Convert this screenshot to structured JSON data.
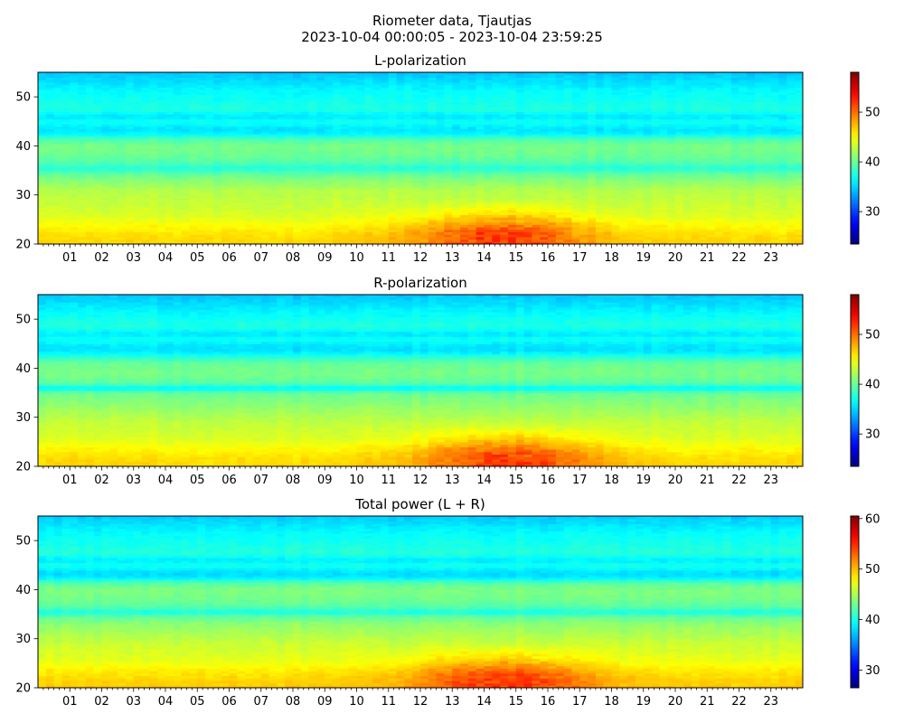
{
  "figure": {
    "title_line1": "Riometer data, Tjautjas",
    "title_line2": "2023-10-04 00:00:05 - 2023-10-04 23:59:25"
  },
  "colormap": "jet",
  "chart_data": [
    {
      "type": "heatmap",
      "title": "L-polarization",
      "x_tick_labels": [
        "01",
        "02",
        "03",
        "04",
        "05",
        "06",
        "07",
        "08",
        "09",
        "10",
        "11",
        "12",
        "13",
        "14",
        "15",
        "16",
        "17",
        "18",
        "19",
        "20",
        "21",
        "22",
        "23"
      ],
      "x_ticks_hours": [
        1,
        2,
        3,
        4,
        5,
        6,
        7,
        8,
        9,
        10,
        11,
        12,
        13,
        14,
        15,
        16,
        17,
        18,
        19,
        20,
        21,
        22,
        23
      ],
      "xlim_hours": [
        0,
        24
      ],
      "ylim": [
        20,
        55
      ],
      "y_ticks": [
        20,
        30,
        40,
        50
      ],
      "colorbar_range": [
        23.5,
        58
      ],
      "colorbar_ticks": [
        30,
        40,
        50
      ],
      "base_profile": {
        "y": [
          20,
          22,
          24,
          25.5,
          27,
          29,
          31,
          33,
          34.5,
          35.5,
          36.5,
          38,
          40,
          41.5,
          42.5,
          43.5,
          45,
          46,
          47.5,
          49,
          51,
          53,
          55
        ],
        "value": [
          46.5,
          46,
          45,
          44,
          43.5,
          43,
          42.5,
          41,
          39.5,
          37.5,
          39,
          40,
          40.5,
          39,
          36,
          35.5,
          37,
          35.5,
          37.5,
          37,
          36.5,
          35.5,
          34.5
        ]
      },
      "enhancement": {
        "center_hour": 14.5,
        "width_hours": 3.0,
        "y_top": 29,
        "peak": 5.5
      }
    },
    {
      "type": "heatmap",
      "title": "R-polarization",
      "x_tick_labels": [
        "01",
        "02",
        "03",
        "04",
        "05",
        "06",
        "07",
        "08",
        "09",
        "10",
        "11",
        "12",
        "13",
        "14",
        "15",
        "16",
        "17",
        "18",
        "19",
        "20",
        "21",
        "22",
        "23"
      ],
      "x_ticks_hours": [
        1,
        2,
        3,
        4,
        5,
        6,
        7,
        8,
        9,
        10,
        11,
        12,
        13,
        14,
        15,
        16,
        17,
        18,
        19,
        20,
        21,
        22,
        23
      ],
      "xlim_hours": [
        0,
        24
      ],
      "ylim": [
        20,
        55
      ],
      "y_ticks": [
        20,
        30,
        40,
        50
      ],
      "colorbar_range": [
        23.5,
        58
      ],
      "colorbar_ticks": [
        30,
        40,
        50
      ],
      "base_profile": {
        "y": [
          20,
          22,
          24,
          25.5,
          27,
          29,
          31,
          33,
          35,
          36,
          37,
          39,
          41,
          42.5,
          43.5,
          44.5,
          46,
          47,
          48.5,
          50,
          52,
          55
        ],
        "value": [
          46.5,
          46,
          45,
          44,
          43.5,
          43,
          42,
          41,
          40,
          36,
          39.5,
          40.5,
          40,
          37.5,
          35.5,
          35.5,
          37,
          35.5,
          37.5,
          37,
          36,
          34.5
        ]
      },
      "enhancement": {
        "center_hour": 14.8,
        "width_hours": 3.0,
        "y_top": 29,
        "peak": 5.5
      }
    },
    {
      "type": "heatmap",
      "title": "Total power (L + R)",
      "x_tick_labels": [
        "01",
        "02",
        "03",
        "04",
        "05",
        "06",
        "07",
        "08",
        "09",
        "10",
        "11",
        "12",
        "13",
        "14",
        "15",
        "16",
        "17",
        "18",
        "19",
        "20",
        "21",
        "22",
        "23"
      ],
      "x_ticks_hours": [
        1,
        2,
        3,
        4,
        5,
        6,
        7,
        8,
        9,
        10,
        11,
        12,
        13,
        14,
        15,
        16,
        17,
        18,
        19,
        20,
        21,
        22,
        23
      ],
      "xlim_hours": [
        0,
        24
      ],
      "ylim": [
        20,
        55
      ],
      "y_ticks": [
        20,
        30,
        40,
        50
      ],
      "colorbar_range": [
        26.5,
        60.5
      ],
      "colorbar_ticks": [
        30,
        40,
        50,
        60
      ],
      "base_profile": {
        "y": [
          20,
          22,
          24,
          25.5,
          27,
          29,
          31,
          33,
          34.5,
          35.5,
          36.5,
          38,
          40,
          41.5,
          42.5,
          43.5,
          45,
          46,
          47.5,
          49,
          51,
          53,
          55
        ],
        "value": [
          49.5,
          49,
          48,
          47,
          46.5,
          46,
          45,
          44,
          42.5,
          40,
          42,
          43,
          43.5,
          42,
          38.5,
          38,
          40,
          38.5,
          40.5,
          40,
          39.5,
          38.5,
          37.5
        ]
      },
      "enhancement": {
        "center_hour": 14.6,
        "width_hours": 3.0,
        "y_top": 29,
        "peak": 5.5
      }
    }
  ]
}
